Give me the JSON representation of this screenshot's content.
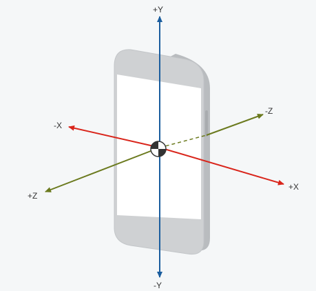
{
  "diagram": {
    "labels": {
      "pos_y": "+Y",
      "neg_y": "-Y",
      "pos_x": "+X",
      "neg_x": "-X",
      "pos_z": "+Z",
      "neg_z": "-Z"
    },
    "colors": {
      "background": "#f5f7f8",
      "y_axis": "#1a5d9e",
      "x_axis": "#d9251b",
      "z_axis": "#6b7a1e",
      "device_body": "#cfd1d3",
      "device_outline": "#b8bbbe",
      "device_screen": "#ffffff",
      "label_text": "#333333"
    }
  }
}
